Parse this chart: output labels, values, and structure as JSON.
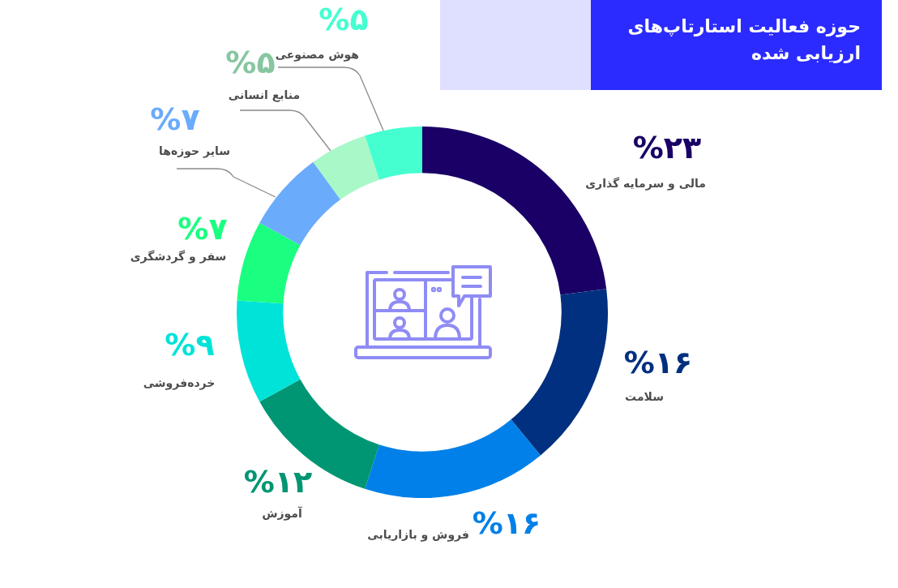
{
  "chart_data": {
    "type": "donut",
    "title": "حوزه فعالیت استارتاپ‌های ارزیابی شده",
    "categories": [
      "مالی و سرمایه گذاری",
      "سلامت",
      "فروش و بازاریابی",
      "آموزش",
      "خرده‌فروشی",
      "سفر و گردشگری",
      "سایر حوزه‌ها",
      "منابع انسانی",
      "هوش مصنوعی"
    ],
    "values": [
      23,
      16,
      16,
      12,
      9,
      7,
      7,
      5,
      5
    ],
    "colors": [
      "#1a0066",
      "#00307f",
      "#0080e8",
      "#009673",
      "#00e3d9",
      "#1aff80",
      "#6aabfc",
      "#a8f8c8",
      "#45ffd0"
    ],
    "value_labels": [
      "%۲۳",
      "%۱۶",
      "%۱۶",
      "%۱۲",
      "%۹",
      "%۷",
      "%۷",
      "%۵",
      "%۵"
    ]
  }
}
